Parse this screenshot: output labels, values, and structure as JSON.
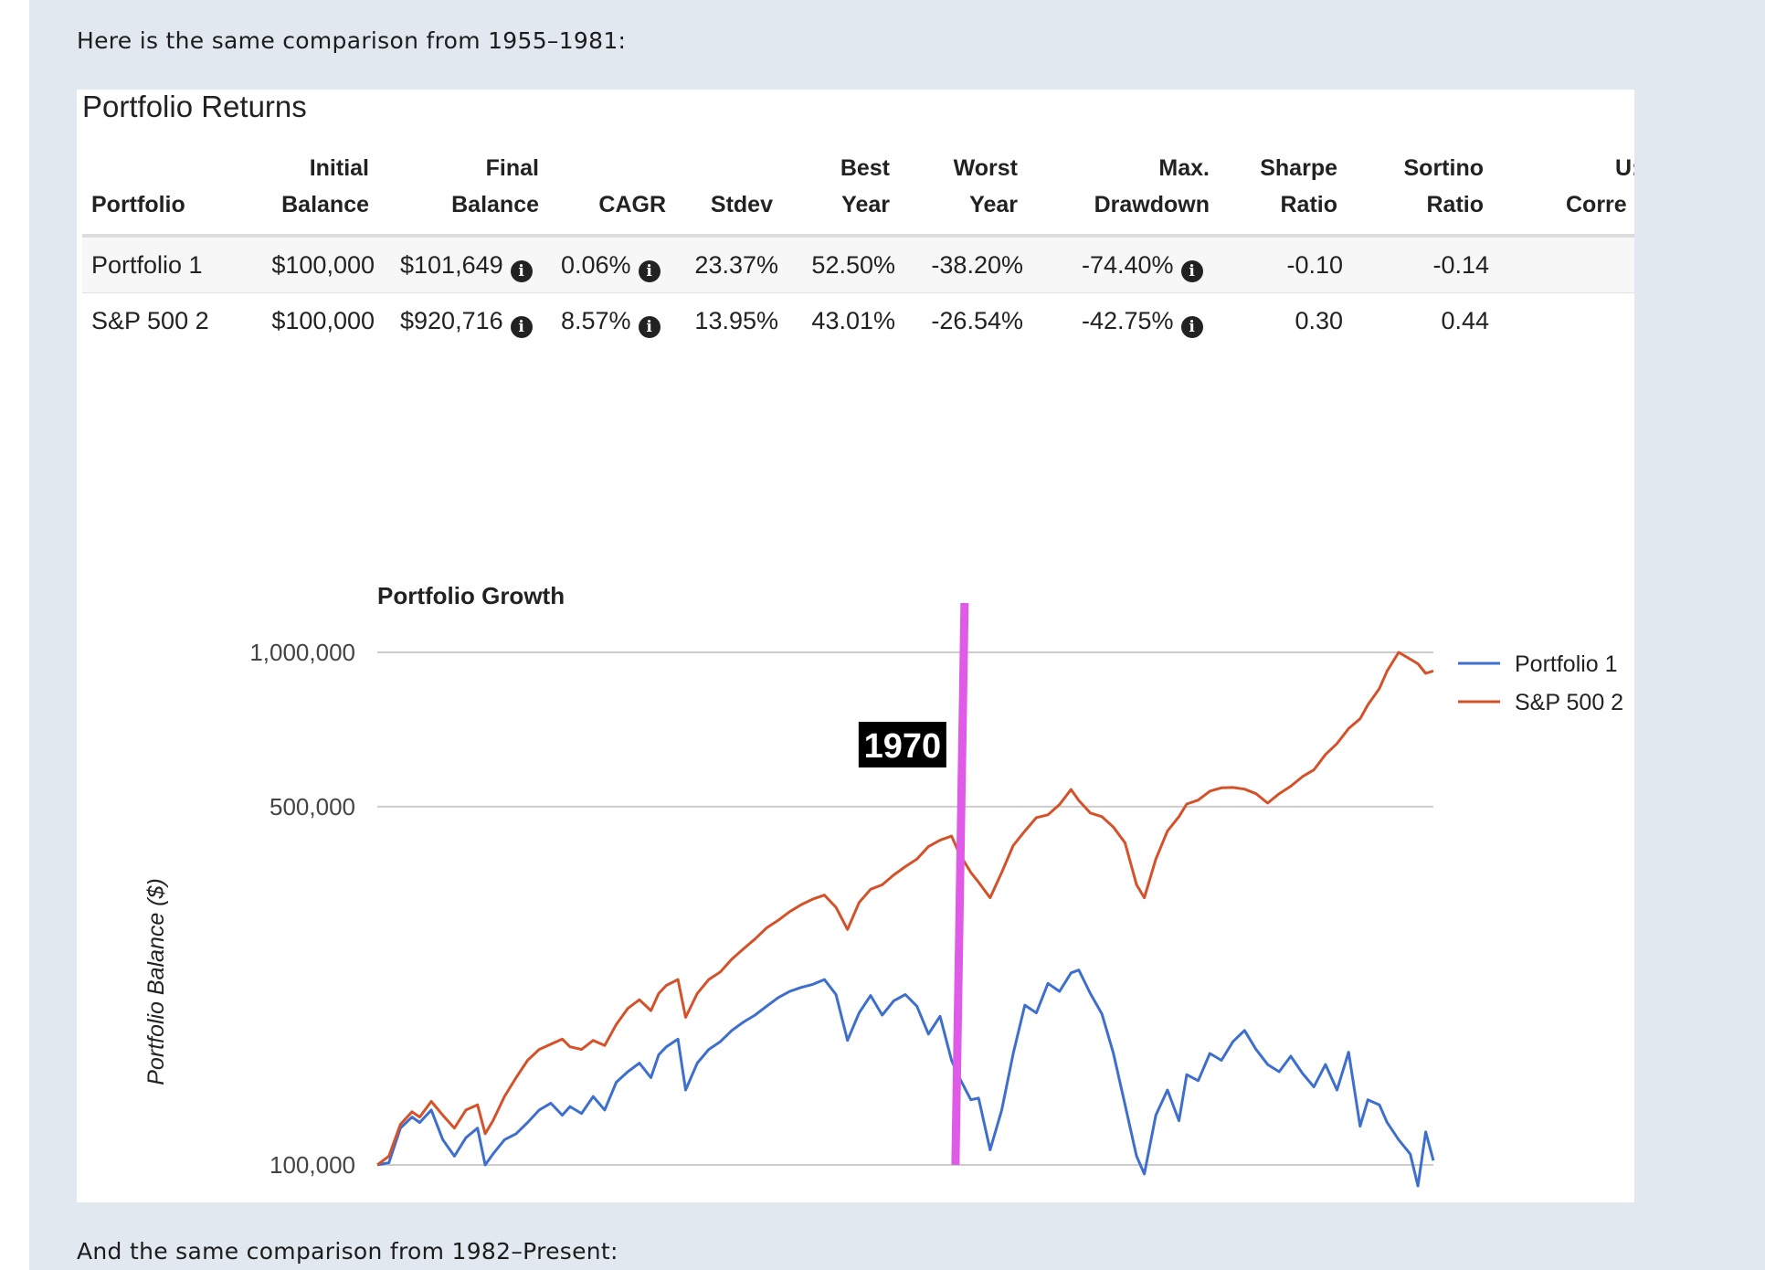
{
  "intro_text": "Here is the same comparison from 1955–1981:",
  "outro_text": "And the same comparison from 1982–Present:",
  "returns_table": {
    "title": "Portfolio Returns",
    "columns": [
      {
        "line1": "",
        "line2": "Portfolio"
      },
      {
        "line1": "Initial",
        "line2": "Balance"
      },
      {
        "line1": "Final",
        "line2": "Balance"
      },
      {
        "line1": "",
        "line2": "CAGR"
      },
      {
        "line1": "",
        "line2": "Stdev"
      },
      {
        "line1": "Best",
        "line2": "Year"
      },
      {
        "line1": "Worst",
        "line2": "Year"
      },
      {
        "line1": "Max.",
        "line2": "Drawdown"
      },
      {
        "line1": "Sharpe",
        "line2": "Ratio"
      },
      {
        "line1": "Sortino",
        "line2": "Ratio"
      },
      {
        "line1": "U:",
        "line2": "Corre"
      }
    ],
    "rows": [
      {
        "portfolio": "Portfolio 1",
        "initial": "$100,000",
        "final": "$101,649",
        "cagr": "0.06%",
        "stdev": "23.37%",
        "best": "52.50%",
        "worst": "-38.20%",
        "drawdown": "-74.40%",
        "sharpe": "-0.10",
        "sortino": "-0.14"
      },
      {
        "portfolio": "S&P 500 2",
        "initial": "$100,000",
        "final": "$920,716",
        "cagr": "8.57%",
        "stdev": "13.95%",
        "best": "43.01%",
        "worst": "-26.54%",
        "drawdown": "-42.75%",
        "sharpe": "0.30",
        "sortino": "0.44"
      }
    ]
  },
  "chart_data": {
    "type": "line",
    "title": "Portfolio Growth",
    "ylabel": "Portfolio Balance ($)",
    "xlabel": "",
    "y_scale": "log",
    "ylim": [
      100000,
      1000000
    ],
    "y_ticks": [
      100000,
      500000,
      1000000
    ],
    "y_tick_labels": [
      "100,000",
      "500,000",
      "1,000,000"
    ],
    "xlim": [
      1955,
      1982.4
    ],
    "x_ticks": [
      "1955",
      "1957",
      "1959",
      "1961",
      "1963",
      "1965",
      "1967",
      "1969",
      "1971",
      "1973",
      "1975",
      "1977",
      "1979",
      "1981"
    ],
    "legend_position": "right",
    "grid": true,
    "annotation": {
      "label": "1970",
      "x": 1970.0,
      "color": "#e05ae8"
    },
    "series": [
      {
        "name": "Portfolio 1",
        "color": "#3e6fcc",
        "x": [
          1955.0,
          1955.3,
          1955.6,
          1955.9,
          1956.1,
          1956.4,
          1956.7,
          1957.0,
          1957.3,
          1957.6,
          1957.8,
          1958.0,
          1958.3,
          1958.6,
          1958.9,
          1959.2,
          1959.5,
          1959.8,
          1960.0,
          1960.3,
          1960.6,
          1960.9,
          1961.2,
          1961.5,
          1961.8,
          1962.1,
          1962.3,
          1962.5,
          1962.8,
          1963.0,
          1963.3,
          1963.6,
          1963.9,
          1964.2,
          1964.5,
          1964.8,
          1965.1,
          1965.4,
          1965.7,
          1966.0,
          1966.3,
          1966.6,
          1966.9,
          1967.2,
          1967.5,
          1967.8,
          1968.1,
          1968.4,
          1968.7,
          1969.0,
          1969.3,
          1969.6,
          1969.9,
          1970.1,
          1970.4,
          1970.6,
          1970.9,
          1971.2,
          1971.5,
          1971.8,
          1972.1,
          1972.4,
          1972.7,
          1973.0,
          1973.2,
          1973.5,
          1973.8,
          1974.1,
          1974.4,
          1974.7,
          1974.9,
          1975.2,
          1975.5,
          1975.8,
          1976.0,
          1976.3,
          1976.6,
          1976.9,
          1977.2,
          1977.5,
          1977.8,
          1978.1,
          1978.4,
          1978.7,
          1979.0,
          1979.3,
          1979.6,
          1979.9,
          1980.2,
          1980.5,
          1980.7,
          1981.0,
          1981.2,
          1981.5,
          1981.8,
          1982.0,
          1982.2,
          1982.4
        ],
        "values": [
          100000,
          101000,
          118000,
          124000,
          121000,
          128000,
          112000,
          104000,
          113000,
          118000,
          100000,
          105000,
          112000,
          115000,
          121000,
          128000,
          132000,
          125000,
          130000,
          126000,
          136000,
          128000,
          145000,
          152000,
          158000,
          148000,
          164000,
          170000,
          176000,
          140000,
          158000,
          168000,
          174000,
          183000,
          190000,
          196000,
          204000,
          212000,
          218000,
          222000,
          225000,
          230000,
          215000,
          175000,
          198000,
          214000,
          196000,
          209000,
          215000,
          204000,
          180000,
          195000,
          160000,
          148000,
          134000,
          135000,
          107000,
          128000,
          165000,
          205000,
          198000,
          226000,
          218000,
          237000,
          240000,
          216000,
          197000,
          165000,
          131000,
          104000,
          96000,
          125000,
          140000,
          122000,
          150000,
          146000,
          165000,
          160000,
          174000,
          183000,
          168000,
          157000,
          152000,
          163000,
          151000,
          142000,
          157000,
          140000,
          166000,
          119000,
          134000,
          131000,
          121000,
          112000,
          105000,
          91000,
          116000,
          102000
        ]
      },
      {
        "name": "S&P 500 2",
        "color": "#d4522a",
        "x": [
          1955.0,
          1955.3,
          1955.6,
          1955.9,
          1956.1,
          1956.4,
          1956.7,
          1957.0,
          1957.3,
          1957.6,
          1957.8,
          1958.0,
          1958.3,
          1958.6,
          1958.9,
          1959.2,
          1959.5,
          1959.8,
          1960.0,
          1960.3,
          1960.6,
          1960.9,
          1961.2,
          1961.5,
          1961.8,
          1962.1,
          1962.3,
          1962.5,
          1962.8,
          1963.0,
          1963.3,
          1963.6,
          1963.9,
          1964.2,
          1964.5,
          1964.8,
          1965.1,
          1965.4,
          1965.7,
          1966.0,
          1966.3,
          1966.6,
          1966.9,
          1967.2,
          1967.5,
          1967.8,
          1968.1,
          1968.4,
          1968.7,
          1969.0,
          1969.3,
          1969.6,
          1969.9,
          1970.1,
          1970.4,
          1970.6,
          1970.9,
          1971.2,
          1971.5,
          1971.8,
          1972.1,
          1972.4,
          1972.7,
          1973.0,
          1973.2,
          1973.5,
          1973.8,
          1974.1,
          1974.4,
          1974.7,
          1974.9,
          1975.2,
          1975.5,
          1975.8,
          1976.0,
          1976.3,
          1976.6,
          1976.9,
          1977.2,
          1977.5,
          1977.8,
          1978.1,
          1978.4,
          1978.7,
          1979.0,
          1979.3,
          1979.6,
          1979.9,
          1980.2,
          1980.5,
          1980.7,
          1981.0,
          1981.2,
          1981.5,
          1981.8,
          1982.0,
          1982.2,
          1982.4
        ],
        "values": [
          100000,
          104000,
          120000,
          127000,
          124000,
          133000,
          125000,
          118000,
          128000,
          131000,
          115000,
          122000,
          136000,
          148000,
          160000,
          168000,
          172000,
          176000,
          170000,
          168000,
          175000,
          171000,
          188000,
          202000,
          210000,
          200000,
          216000,
          224000,
          230000,
          194000,
          216000,
          230000,
          238000,
          252000,
          264000,
          276000,
          290000,
          300000,
          312000,
          322000,
          330000,
          336000,
          318000,
          288000,
          325000,
          345000,
          352000,
          368000,
          382000,
          395000,
          418000,
          430000,
          438000,
          405000,
          372000,
          356000,
          332000,
          372000,
          420000,
          448000,
          476000,
          482000,
          505000,
          540000,
          514000,
          486000,
          478000,
          456000,
          425000,
          352000,
          332000,
          395000,
          448000,
          478000,
          506000,
          515000,
          536000,
          544000,
          545000,
          541000,
          530000,
          508000,
          530000,
          548000,
          572000,
          590000,
          632000,
          664000,
          710000,
          742000,
          790000,
          850000,
          920000,
          1000000,
          970000,
          950000,
          910000,
          920000
        ]
      }
    ]
  }
}
